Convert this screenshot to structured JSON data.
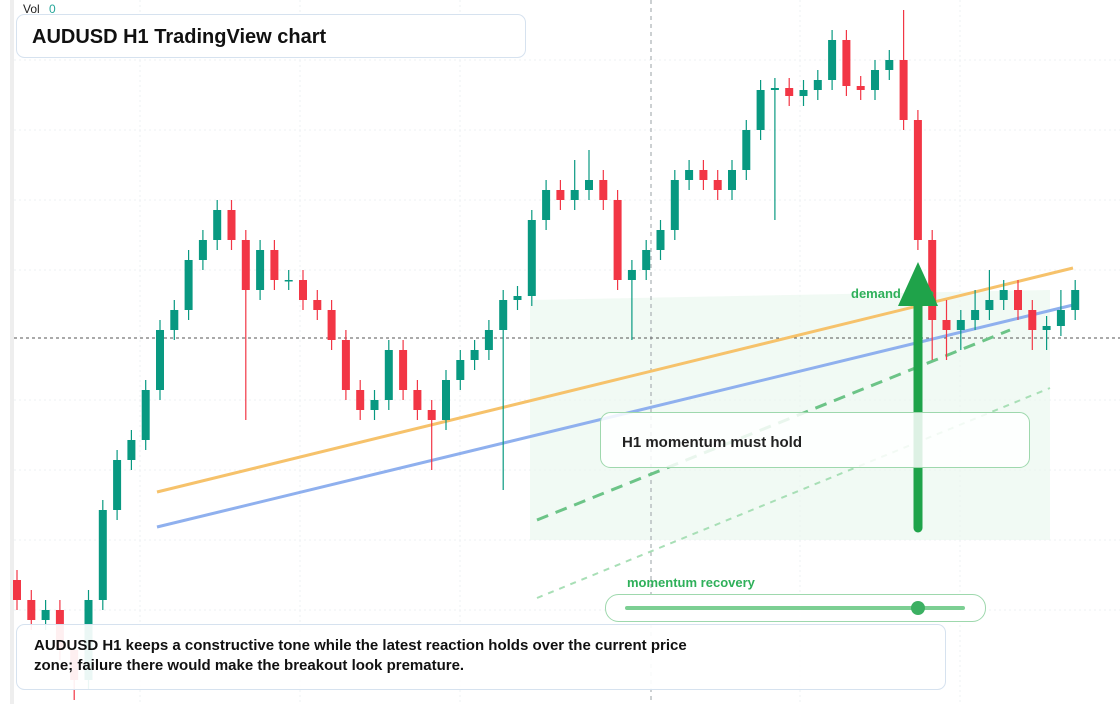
{
  "chart_data": {
    "type": "candlestick",
    "title": "AUDUSD H1 TradingView chart",
    "volume_label": "Vol",
    "volume_value": 0,
    "zone_label": "demand zone",
    "callout": "H1 momentum must hold",
    "slider_label": "momentum recovery",
    "note": "AUDUSD H1 keeps a constructive tone while the latest reaction holds over the current price zone; failure there would make the breakout look premature.",
    "up_color": "#089981",
    "down_color": "#f23645",
    "ylim": [
      0.64,
      0.6752
    ],
    "open": [
      0.6462,
      0.6452,
      0.6442,
      0.6447,
      0.6427,
      0.6412,
      0.6452,
      0.6497,
      0.6522,
      0.6532,
      0.6557,
      0.6587,
      0.6597,
      0.6622,
      0.6632,
      0.6647,
      0.6632,
      0.6607,
      0.6627,
      0.6612,
      0.6612,
      0.6602,
      0.6597,
      0.6582,
      0.6557,
      0.6547,
      0.6552,
      0.6577,
      0.6557,
      0.6547,
      0.6542,
      0.6562,
      0.6572,
      0.6577,
      0.6587,
      0.6602,
      0.6604,
      0.6642,
      0.6657,
      0.6652,
      0.6657,
      0.6662,
      0.6652,
      0.6612,
      0.6617,
      0.6627,
      0.6637,
      0.6662,
      0.6667,
      0.6662,
      0.6657,
      0.6667,
      0.6687,
      0.6707,
      0.6708,
      0.6704,
      0.6707,
      0.6712,
      0.6732,
      0.6709,
      0.6707,
      0.6717,
      0.6722,
      0.6692,
      0.6632,
      0.6592,
      0.6587,
      0.6592,
      0.6597,
      0.6602,
      0.6607,
      0.6597,
      0.6587,
      0.6589,
      0.6597
    ],
    "high": [
      0.6467,
      0.6457,
      0.6452,
      0.6452,
      0.6432,
      0.6457,
      0.6502,
      0.6527,
      0.6537,
      0.6562,
      0.6592,
      0.6602,
      0.6627,
      0.6637,
      0.6652,
      0.6652,
      0.6637,
      0.6632,
      0.6632,
      0.6617,
      0.6617,
      0.6607,
      0.6602,
      0.6587,
      0.6562,
      0.6557,
      0.6582,
      0.6582,
      0.6562,
      0.6552,
      0.6567,
      0.6577,
      0.6582,
      0.6592,
      0.6607,
      0.6609,
      0.6647,
      0.6662,
      0.6662,
      0.6672,
      0.6677,
      0.6667,
      0.6657,
      0.6622,
      0.6632,
      0.6642,
      0.6667,
      0.6672,
      0.6672,
      0.6667,
      0.6672,
      0.6692,
      0.6712,
      0.6713,
      0.6713,
      0.6712,
      0.6717,
      0.6737,
      0.6737,
      0.6714,
      0.6722,
      0.6727,
      0.6747,
      0.6697,
      0.6637,
      0.6602,
      0.6597,
      0.6607,
      0.6617,
      0.6612,
      0.6612,
      0.6602,
      0.6594,
      0.6607,
      0.6612
    ],
    "low": [
      0.6447,
      0.6437,
      0.6437,
      0.6422,
      0.6402,
      0.6407,
      0.6447,
      0.6492,
      0.6517,
      0.6527,
      0.6552,
      0.6582,
      0.6592,
      0.6617,
      0.6627,
      0.6627,
      0.6542,
      0.6602,
      0.6607,
      0.6607,
      0.6597,
      0.6592,
      0.6577,
      0.6552,
      0.6542,
      0.6542,
      0.6547,
      0.6552,
      0.6542,
      0.6517,
      0.6537,
      0.6557,
      0.6567,
      0.6572,
      0.6507,
      0.6597,
      0.6599,
      0.6637,
      0.6647,
      0.6647,
      0.6652,
      0.6647,
      0.6607,
      0.6582,
      0.6612,
      0.6622,
      0.6632,
      0.6657,
      0.6657,
      0.6652,
      0.6652,
      0.6662,
      0.6682,
      0.6642,
      0.6699,
      0.6699,
      0.6702,
      0.6707,
      0.6704,
      0.6702,
      0.6702,
      0.6712,
      0.6687,
      0.6627,
      0.6572,
      0.6572,
      0.6577,
      0.6587,
      0.6592,
      0.6597,
      0.6592,
      0.6577,
      0.6577,
      0.6584,
      0.6592
    ],
    "close": [
      0.6452,
      0.6442,
      0.6447,
      0.6427,
      0.6412,
      0.6452,
      0.6497,
      0.6522,
      0.6532,
      0.6557,
      0.6587,
      0.6597,
      0.6622,
      0.6632,
      0.6647,
      0.6632,
      0.6607,
      0.6627,
      0.6612,
      0.6612,
      0.6602,
      0.6597,
      0.6582,
      0.6557,
      0.6547,
      0.6552,
      0.6577,
      0.6557,
      0.6547,
      0.6542,
      0.6562,
      0.6572,
      0.6577,
      0.6587,
      0.6602,
      0.6604,
      0.6642,
      0.6657,
      0.6652,
      0.6657,
      0.6662,
      0.6652,
      0.6612,
      0.6617,
      0.6627,
      0.6637,
      0.6662,
      0.6667,
      0.6662,
      0.6657,
      0.6667,
      0.6687,
      0.6707,
      0.6708,
      0.6704,
      0.6707,
      0.6712,
      0.6732,
      0.6709,
      0.6707,
      0.6717,
      0.6722,
      0.6692,
      0.6632,
      0.6592,
      0.6587,
      0.6592,
      0.6597,
      0.6602,
      0.6607,
      0.6597,
      0.6587,
      0.6589,
      0.6597,
      0.6607
    ]
  }
}
